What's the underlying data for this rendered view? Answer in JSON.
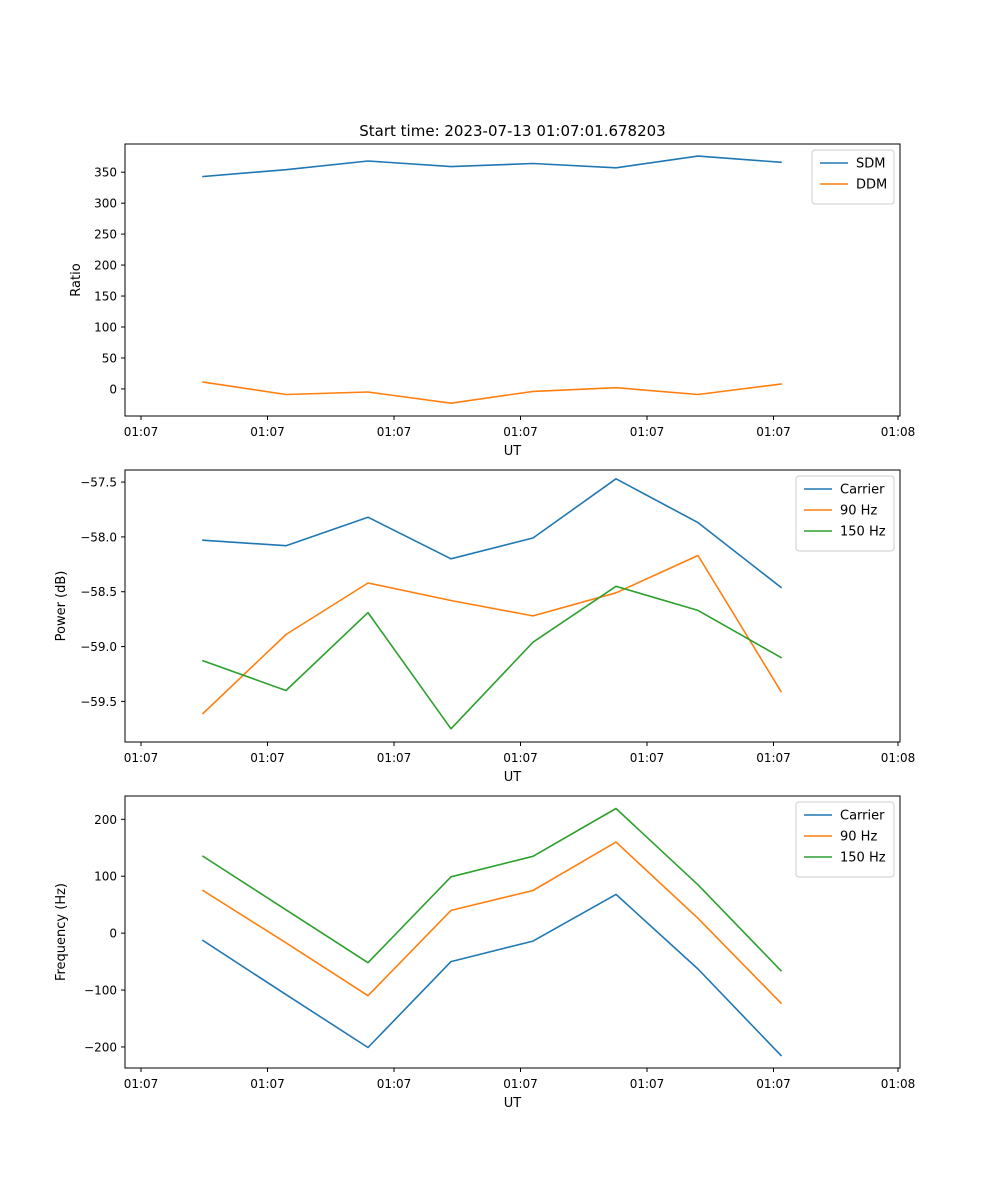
{
  "chart_data": [
    {
      "type": "line",
      "title": "Start time: 2023-07-13 01:07:01.678203",
      "xlabel": "UT",
      "ylabel": "Ratio",
      "x_ticks": [
        "01:07",
        "01:07",
        "01:07",
        "01:07",
        "01:07",
        "01:07",
        "01:08"
      ],
      "ylim": [
        -43.7,
        395.5
      ],
      "y_ticks": [
        0,
        50,
        100,
        150,
        200,
        250,
        300,
        350
      ],
      "y_tick_labels": [
        "0",
        "50",
        "100",
        "150",
        "200",
        "250",
        "300",
        "350"
      ],
      "legend_position": "top-right",
      "series": [
        {
          "name": "SDM",
          "color": "#1f77b4",
          "values": [
            343,
            354,
            368,
            359,
            364,
            357,
            376,
            366
          ]
        },
        {
          "name": "DDM",
          "color": "#ff7f0e",
          "values": [
            11,
            -9,
            -5,
            -23,
            -4,
            2,
            -9,
            8
          ]
        }
      ]
    },
    {
      "type": "line",
      "title": "",
      "xlabel": "UT",
      "ylabel": "Power (dB)",
      "x_ticks": [
        "01:07",
        "01:07",
        "01:07",
        "01:07",
        "01:07",
        "01:07",
        "01:08"
      ],
      "ylim": [
        -59.87,
        -57.39
      ],
      "y_ticks": [
        -59.5,
        -59.0,
        -58.5,
        -58.0,
        -57.5
      ],
      "y_tick_labels": [
        "−59.5",
        "−59.0",
        "−58.5",
        "−58.0",
        "−57.5"
      ],
      "legend_position": "top-right",
      "series": [
        {
          "name": "Carrier",
          "color": "#1f77b4",
          "values": [
            -58.03,
            -58.08,
            -57.82,
            -58.2,
            -58.01,
            -57.47,
            -57.87,
            -58.46
          ]
        },
        {
          "name": "90 Hz",
          "color": "#ff7f0e",
          "values": [
            -59.61,
            -58.89,
            -58.42,
            -58.58,
            -58.72,
            -58.51,
            -58.17,
            -59.41
          ]
        },
        {
          "name": "150 Hz",
          "color": "#2ca02c",
          "values": [
            -59.13,
            -59.4,
            -58.69,
            -59.75,
            -58.96,
            -58.45,
            -58.67,
            -59.1
          ]
        }
      ]
    },
    {
      "type": "line",
      "title": "",
      "xlabel": "UT",
      "ylabel": "Frequency (Hz)",
      "x_ticks": [
        "01:07",
        "01:07",
        "01:07",
        "01:07",
        "01:07",
        "01:07",
        "01:08"
      ],
      "ylim": [
        -237,
        241
      ],
      "y_ticks": [
        -200,
        -100,
        0,
        100,
        200
      ],
      "y_tick_labels": [
        "−200",
        "−100",
        "0",
        "100",
        "200"
      ],
      "legend_position": "top-right",
      "series": [
        {
          "name": "Carrier",
          "color": "#1f77b4",
          "values": [
            -13,
            -108,
            -201,
            -50,
            -14,
            68,
            -63,
            -215
          ]
        },
        {
          "name": "90 Hz",
          "color": "#ff7f0e",
          "values": [
            75,
            -17,
            -110,
            40,
            75,
            160,
            26,
            -123
          ]
        },
        {
          "name": "150 Hz",
          "color": "#2ca02c",
          "values": [
            135,
            41,
            -52,
            99,
            135,
            219,
            85,
            -66
          ]
        }
      ]
    }
  ]
}
